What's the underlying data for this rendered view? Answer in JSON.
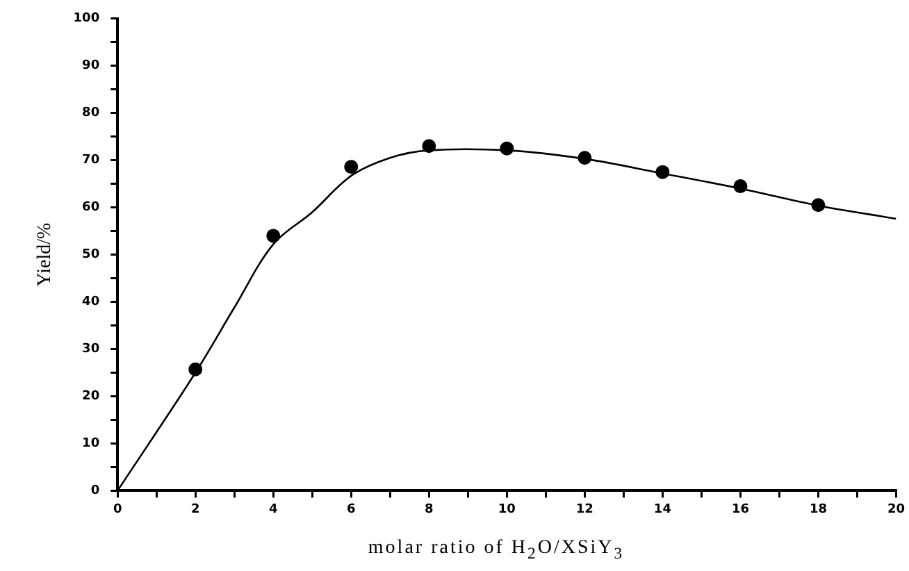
{
  "chart_data": {
    "type": "scatter",
    "xlabel": "molar ratio of H$_{2}$O/XSiY$_{3}$",
    "ylabel": "Yield/%",
    "xlim": [
      0,
      20
    ],
    "ylim": [
      0,
      100
    ],
    "xticks": [
      0,
      {
        "value": 1,
        "label": null
      },
      2,
      {
        "value": 3,
        "label": null
      },
      4,
      {
        "value": 5,
        "label": null
      },
      6,
      {
        "value": 7,
        "label": null
      },
      8,
      {
        "value": 9,
        "label": null
      },
      10,
      {
        "value": 11,
        "label": null
      },
      12,
      {
        "value": 13,
        "label": null
      },
      14,
      {
        "value": 15,
        "label": null
      },
      16,
      {
        "value": 17,
        "label": null
      },
      18,
      {
        "value": 19,
        "label": null
      },
      20
    ],
    "yticks": [
      0,
      {
        "value": 5,
        "label": null
      },
      10,
      {
        "value": 15,
        "label": null
      },
      20,
      {
        "value": 25,
        "label": null
      },
      30,
      {
        "value": 35,
        "label": null
      },
      40,
      {
        "value": 45,
        "label": null
      },
      50,
      {
        "value": 55,
        "label": null
      },
      60,
      {
        "value": 65,
        "label": null
      },
      70,
      {
        "value": 75,
        "label": null
      },
      80,
      {
        "value": 85,
        "label": null
      },
      90,
      {
        "value": 95,
        "label": null
      },
      100
    ],
    "grid": false,
    "legend": false,
    "series": [
      {
        "type": "scatter",
        "color": "#000000",
        "marker": "circle",
        "x": [
          2,
          4,
          6,
          8,
          10,
          12,
          14,
          16,
          18
        ],
        "values": [
          25.7,
          54,
          68.6,
          73,
          72.5,
          70.5,
          67.5,
          64.5,
          60.5
        ]
      },
      {
        "type": "line",
        "color": "#000000",
        "marker": "none",
        "line_style": "solid",
        "x": [
          0,
          2,
          3,
          4,
          5,
          6,
          7,
          8,
          10,
          12,
          14,
          16,
          18,
          20
        ],
        "values": [
          0,
          25,
          38.8,
          52.2,
          59,
          66.7,
          70.5,
          72.1,
          72.1,
          70.3,
          67.2,
          64,
          60.4,
          57.6
        ]
      }
    ]
  }
}
